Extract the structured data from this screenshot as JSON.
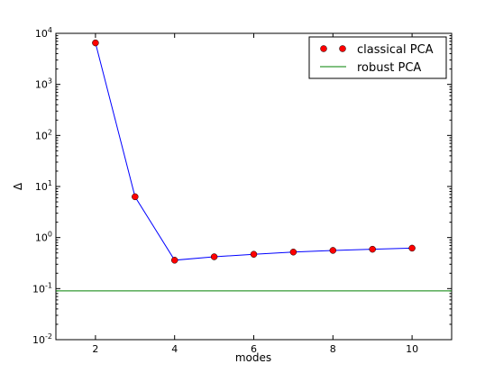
{
  "chart_data": {
    "type": "line",
    "xlabel": "modes",
    "ylabel": "Δ",
    "yscale": "log",
    "xlim": [
      1,
      11
    ],
    "ylim": [
      0.01,
      10000
    ],
    "x_ticks": [
      2,
      4,
      6,
      8,
      10
    ],
    "y_ticks": [
      {
        "value": 0.01,
        "base": "10",
        "exp": "-2"
      },
      {
        "value": 0.1,
        "base": "10",
        "exp": "-1"
      },
      {
        "value": 1,
        "base": "10",
        "exp": "0"
      },
      {
        "value": 10,
        "base": "10",
        "exp": "1"
      },
      {
        "value": 100,
        "base": "10",
        "exp": "2"
      },
      {
        "value": 1000,
        "base": "10",
        "exp": "3"
      },
      {
        "value": 10000,
        "base": "10",
        "exp": "4"
      }
    ],
    "grid": false,
    "legend_position": "top-right",
    "series": [
      {
        "name": "classical PCA",
        "style": "line-with-markers",
        "line_color": "#0000ff",
        "marker_color": "#ff0000",
        "x": [
          2,
          3,
          4,
          5,
          6,
          7,
          8,
          9,
          10
        ],
        "y": [
          6500,
          6.3,
          0.36,
          0.42,
          0.47,
          0.52,
          0.56,
          0.59,
          0.62
        ]
      },
      {
        "name": "robust PCA",
        "style": "horizontal-line",
        "line_color": "#008000",
        "y": 0.09
      }
    ]
  }
}
